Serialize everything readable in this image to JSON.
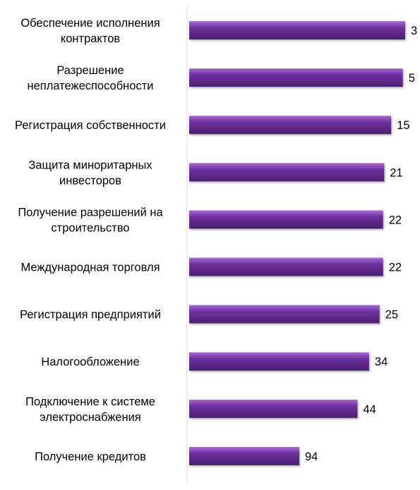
{
  "chart_data": {
    "type": "bar",
    "orientation": "horizontal",
    "axis_reversed": true,
    "categories": [
      [
        "Обеспечение исполнения",
        "контрактов"
      ],
      [
        "Разрешение",
        "неплатежеспособности"
      ],
      [
        "Регистрация собственности"
      ],
      [
        "Защита миноритарных",
        "инвесторов"
      ],
      [
        "Получение разрешений  на",
        "строительство"
      ],
      [
        "Международная торговля"
      ],
      [
        "Регистрация предприятий"
      ],
      [
        "Налогообложение"
      ],
      [
        "Подключение к системе",
        "электроснабжения"
      ],
      [
        "Получение кредитов"
      ]
    ],
    "values": [
      3,
      5,
      15,
      21,
      22,
      22,
      25,
      34,
      44,
      94
    ],
    "bar_color": "#7030A0",
    "bar_highlight": "#A66BD3",
    "bar_shadow": "#4B1F6E",
    "axis_color": "#D9D9D9",
    "grid": false,
    "legend": "none"
  }
}
